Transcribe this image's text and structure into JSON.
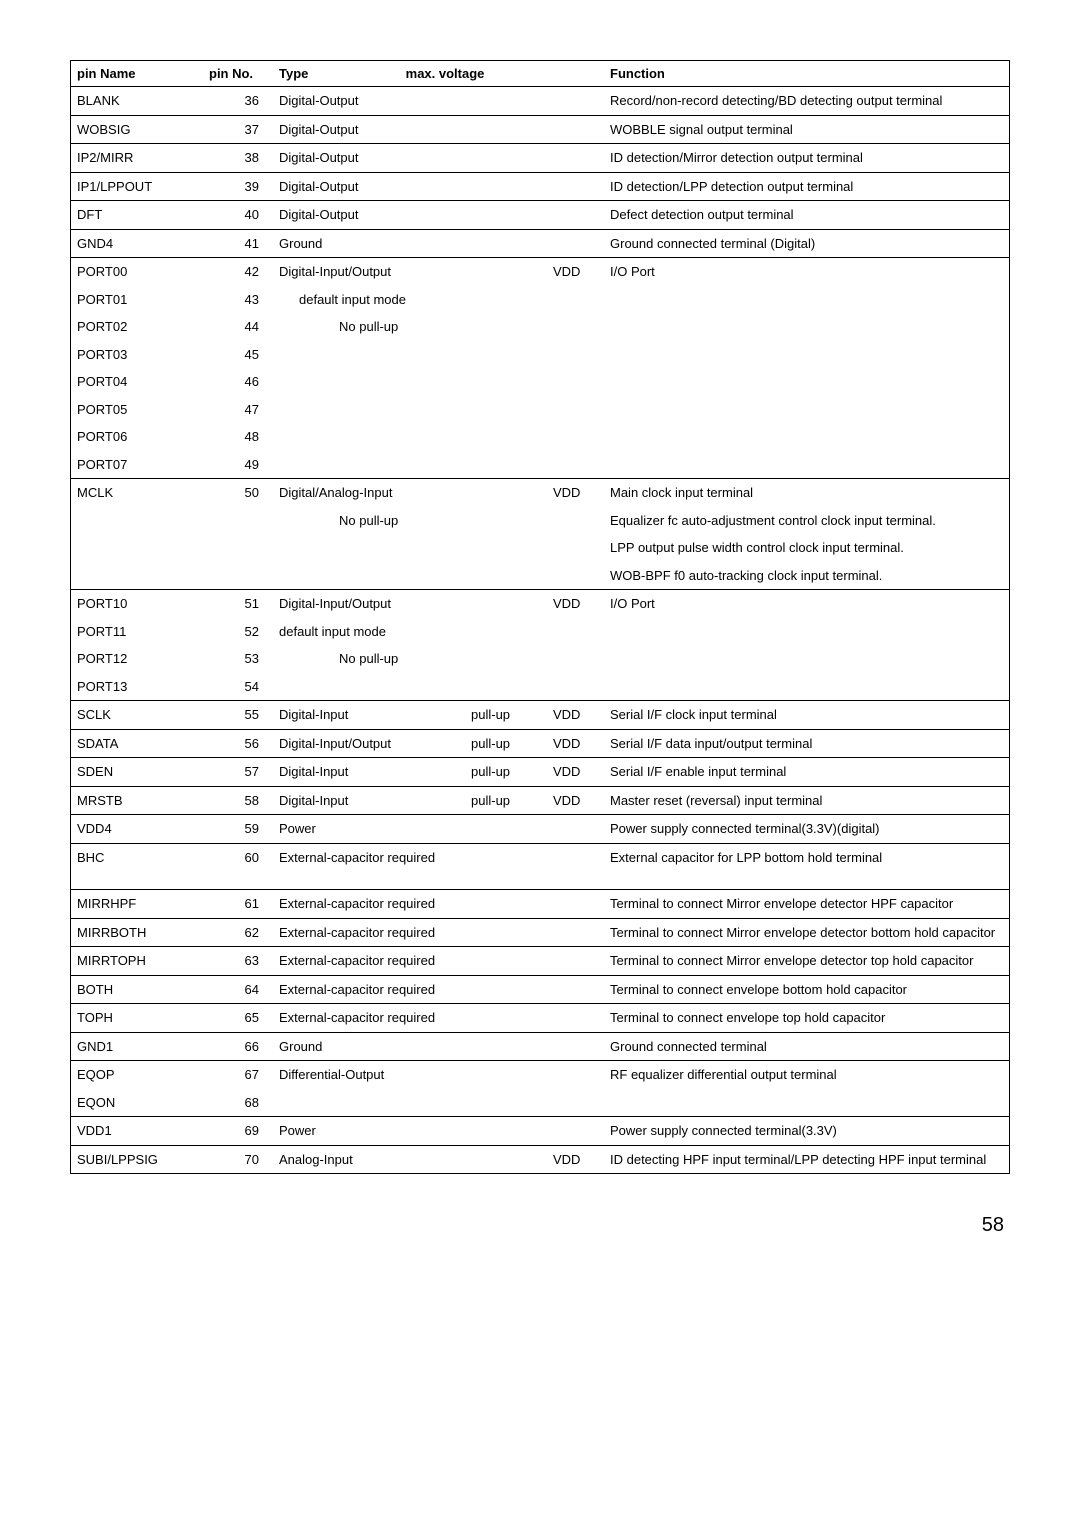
{
  "page_number": "58",
  "headers": {
    "pin_name": "pin Name",
    "pin_no": "pin No.",
    "type": "Type",
    "max_voltage": "max. voltage",
    "function": "Function"
  },
  "groups": [
    {
      "rows": [
        {
          "name": "BLANK",
          "no": "36",
          "type": "Digital-Output",
          "pull": "",
          "volt": "",
          "func": "Record/non-record detecting/BD detecting output terminal",
          "func_justify": true
        }
      ]
    },
    {
      "rows": [
        {
          "name": "WOBSIG",
          "no": "37",
          "type": "Digital-Output",
          "pull": "",
          "volt": "",
          "func": "WOBBLE signal output terminal"
        }
      ]
    },
    {
      "rows": [
        {
          "name": "IP2/MIRR",
          "no": "38",
          "type": "Digital-Output",
          "pull": "",
          "volt": "",
          "func": "ID detection/Mirror detection output terminal"
        }
      ]
    },
    {
      "rows": [
        {
          "name": "IP1/LPPOUT",
          "no": "39",
          "type": "Digital-Output",
          "pull": "",
          "volt": "",
          "func": "ID detection/LPP detection output terminal"
        }
      ]
    },
    {
      "rows": [
        {
          "name": "DFT",
          "no": "40",
          "type": "Digital-Output",
          "pull": "",
          "volt": "",
          "func": "Defect detection output terminal"
        }
      ]
    },
    {
      "rows": [
        {
          "name": "GND4",
          "no": "41",
          "type": "Ground",
          "pull": "",
          "volt": "",
          "func": "Ground connected terminal (Digital)"
        }
      ]
    },
    {
      "rows": [
        {
          "name": "PORT00",
          "no": "42",
          "type": "Digital-Input/Output",
          "pull": "",
          "volt": "VDD",
          "func": "I/O Port"
        },
        {
          "name": "PORT01",
          "no": "43",
          "type": "default input mode",
          "type_indent": 1,
          "pull": "",
          "volt": "",
          "func": ""
        },
        {
          "name": "PORT02",
          "no": "44",
          "type": "No pull-up",
          "type_indent": 2,
          "pull": "",
          "volt": "",
          "func": ""
        },
        {
          "name": "PORT03",
          "no": "45",
          "type": "",
          "pull": "",
          "volt": "",
          "func": ""
        },
        {
          "name": "PORT04",
          "no": "46",
          "type": "",
          "pull": "",
          "volt": "",
          "func": ""
        },
        {
          "name": "PORT05",
          "no": "47",
          "type": "",
          "pull": "",
          "volt": "",
          "func": ""
        },
        {
          "name": "PORT06",
          "no": "48",
          "type": "",
          "pull": "",
          "volt": "",
          "func": ""
        },
        {
          "name": "PORT07",
          "no": "49",
          "type": "",
          "pull": "",
          "volt": "",
          "func": ""
        }
      ]
    },
    {
      "rows": [
        {
          "name": "MCLK",
          "no": "50",
          "type": "Digital/Analog-Input",
          "pull": "",
          "volt": "VDD",
          "func": "Main clock input terminal"
        },
        {
          "name": "",
          "no": "",
          "type": "No pull-up",
          "type_indent": 2,
          "pull": "",
          "volt": "",
          "func": "Equalizer fc auto-adjustment control clock input terminal."
        },
        {
          "name": "",
          "no": "",
          "type": "",
          "pull": "",
          "volt": "",
          "func": "LPP output pulse width control clock input terminal."
        },
        {
          "name": "",
          "no": "",
          "type": "",
          "pull": "",
          "volt": "",
          "func": "WOB-BPF f0 auto-tracking clock input terminal."
        }
      ]
    },
    {
      "rows": [
        {
          "name": "PORT10",
          "no": "51",
          "type": "Digital-Input/Output",
          "pull": "",
          "volt": "VDD",
          "func": "I/O Port"
        },
        {
          "name": "PORT11",
          "no": "52",
          "type": "default input mode",
          "type_indent": 0,
          "pull": "",
          "volt": "",
          "func": ""
        },
        {
          "name": "PORT12",
          "no": "53",
          "type": "No pull-up",
          "type_indent": 2,
          "pull": "",
          "volt": "",
          "func": ""
        },
        {
          "name": "PORT13",
          "no": "54",
          "type": "",
          "pull": "",
          "volt": "",
          "func": ""
        }
      ]
    },
    {
      "rows": [
        {
          "name": "SCLK",
          "no": "55",
          "type": "Digital-Input",
          "pull": "pull-up",
          "volt": "VDD",
          "func": "Serial I/F clock input terminal"
        }
      ]
    },
    {
      "rows": [
        {
          "name": "SDATA",
          "no": "56",
          "type": "Digital-Input/Output",
          "pull": "pull-up",
          "volt": "VDD",
          "func": "Serial I/F data input/output terminal"
        }
      ]
    },
    {
      "rows": [
        {
          "name": "SDEN",
          "no": "57",
          "type": "Digital-Input",
          "pull": "pull-up",
          "volt": "VDD",
          "func": "Serial I/F enable input terminal"
        }
      ]
    },
    {
      "rows": [
        {
          "name": "MRSTB",
          "no": "58",
          "type": "Digital-Input",
          "pull": "pull-up",
          "volt": "VDD",
          "func": "Master reset (reversal) input terminal"
        }
      ]
    },
    {
      "rows": [
        {
          "name": "VDD4",
          "no": "59",
          "type": "Power",
          "pull": "",
          "volt": "",
          "func": "Power supply connected terminal(3.3V)(digital)"
        }
      ]
    },
    {
      "rows": [
        {
          "name": "BHC",
          "no": "60",
          "type": "External-capacitor required",
          "type_colspan": 2,
          "pull": "",
          "volt": "",
          "func": "External capacitor for LPP bottom hold terminal",
          "extra_space": true
        }
      ]
    },
    {
      "rows": [
        {
          "name": "MIRRHPF",
          "no": "61",
          "type": "External-capacitor required",
          "type_colspan": 2,
          "pull": "",
          "volt": "",
          "func": "Terminal to connect Mirror envelope detector HPF capacitor",
          "func_justify": true
        }
      ]
    },
    {
      "rows": [
        {
          "name": "MIRRBOTH",
          "no": "62",
          "type": "External-capacitor required",
          "type_colspan": 2,
          "pull": "",
          "volt": "",
          "func": "Terminal to connect Mirror envelope detector bottom hold capacitor",
          "func_justify": true
        }
      ]
    },
    {
      "rows": [
        {
          "name": "MIRRTOPH",
          "no": "63",
          "type": "External-capacitor required",
          "type_colspan": 2,
          "pull": "",
          "volt": "",
          "func": "Terminal to connect Mirror envelope detector top hold capacitor",
          "func_justify": true
        }
      ]
    },
    {
      "rows": [
        {
          "name": "BOTH",
          "no": "64",
          "type": "External-capacitor required",
          "type_colspan": 2,
          "pull": "",
          "volt": "",
          "func": "Terminal to connect envelope bottom hold capacitor"
        }
      ]
    },
    {
      "rows": [
        {
          "name": "TOPH",
          "no": "65",
          "type": "External-capacitor required",
          "type_colspan": 2,
          "pull": "",
          "volt": "",
          "func": "Terminal to connect envelope top hold capacitor"
        }
      ]
    },
    {
      "rows": [
        {
          "name": "GND1",
          "no": "66",
          "type": "Ground",
          "pull": "",
          "volt": "",
          "func": "Ground connected terminal"
        }
      ]
    },
    {
      "rows": [
        {
          "name": "EQOP",
          "no": "67",
          "type": "Differential-Output",
          "pull": "",
          "volt": "",
          "func": "RF equalizer differential output terminal"
        },
        {
          "name": "EQON",
          "no": "68",
          "type": "",
          "pull": "",
          "volt": "",
          "func": ""
        }
      ]
    },
    {
      "rows": [
        {
          "name": "VDD1",
          "no": "69",
          "type": "Power",
          "pull": "",
          "volt": "",
          "func": "Power supply connected terminal(3.3V)"
        }
      ]
    },
    {
      "rows": [
        {
          "name": "SUBI/LPPSIG",
          "no": "70",
          "type": "Analog-Input",
          "pull": "",
          "volt": "VDD",
          "func": "ID detecting HPF input terminal/LPP detecting HPF input terminal",
          "func_justify": true
        }
      ]
    }
  ]
}
